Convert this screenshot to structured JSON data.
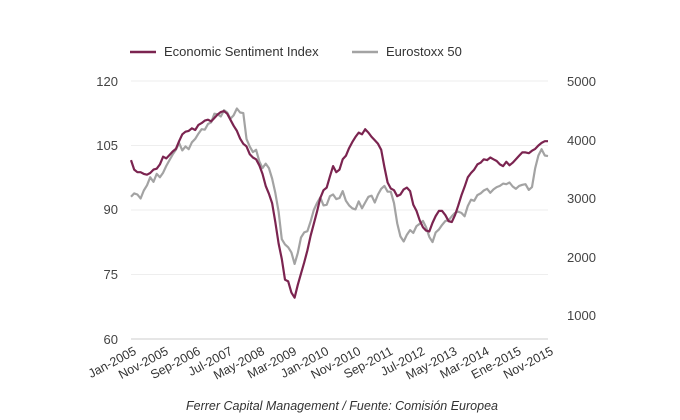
{
  "chart_data": {
    "type": "line",
    "grid": "horizontal",
    "legend_position": "top-left",
    "source": "Ferrer Capital Management / Fuente: Comisión Europea",
    "x_tick_labels": [
      "Jan-2005",
      "Nov-2005",
      "Sep-2006",
      "Jul-2007",
      "May-2008",
      "Mar-2009",
      "Jan-2010",
      "Nov-2010",
      "Sep-2011",
      "Jul-2012",
      "May-2013",
      "Mar-2014",
      "Ene-2015",
      "Nov-2015"
    ],
    "y_left": {
      "ylim": [
        60,
        120
      ],
      "ticks": [
        "120",
        "105",
        "90",
        "75",
        "60"
      ]
    },
    "y_right": {
      "ylim": [
        500,
        5000
      ],
      "ticks": [
        "5000",
        "4000",
        "3000",
        "2000",
        "1000"
      ]
    },
    "series": [
      {
        "name": "Economic Sentiment Index",
        "axis": "left",
        "color": "#7b2450",
        "start": "2005-01",
        "values": [
          101.6,
          99.4,
          98.8,
          98.8,
          98.4,
          98.2,
          98.6,
          99.4,
          99.6,
          100.6,
          102.4,
          102.0,
          102.8,
          103.6,
          104.2,
          106.0,
          107.6,
          108.2,
          108.4,
          109.0,
          108.6,
          109.8,
          110.2,
          110.8,
          111.0,
          110.6,
          111.4,
          112.2,
          112.8,
          113.0,
          112.4,
          111.0,
          109.6,
          108.4,
          106.6,
          105.4,
          104.8,
          103.0,
          102.2,
          101.8,
          100.4,
          98.4,
          95.6,
          93.8,
          91.6,
          87.2,
          82.2,
          78.6,
          73.8,
          73.4,
          70.8,
          69.6,
          72.6,
          75.2,
          77.8,
          80.6,
          84.0,
          86.8,
          89.6,
          92.8,
          94.6,
          95.2,
          97.8,
          100.2,
          98.8,
          99.4,
          101.8,
          102.6,
          104.4,
          105.8,
          107.0,
          108.0,
          107.6,
          108.8,
          108.0,
          107.0,
          106.2,
          105.4,
          104.0,
          100.0,
          96.4,
          95.0,
          94.6,
          93.2,
          93.6,
          94.8,
          95.2,
          94.4,
          91.2,
          89.8,
          87.6,
          86.0,
          85.2,
          85.0,
          87.0,
          88.6,
          89.8,
          89.8,
          88.8,
          87.4,
          87.2,
          88.8,
          91.0,
          93.4,
          95.4,
          97.6,
          98.6,
          99.4,
          100.6,
          101.0,
          101.8,
          101.6,
          102.2,
          101.8,
          101.4,
          100.6,
          100.2,
          101.2,
          100.4,
          101.0,
          101.8,
          102.6,
          103.4,
          103.4,
          103.2,
          103.8,
          104.2,
          105.0,
          105.6,
          106.0,
          106.0
        ],
        "note": "Monthly values Jan-2005 to Nov-2015 (131 months), read off the chart"
      },
      {
        "name": "Eurostoxx 50",
        "axis": "right",
        "color": "#a3a3a3",
        "start": "2005-01",
        "values": [
          2980,
          3040,
          3020,
          2950,
          3090,
          3180,
          3320,
          3240,
          3380,
          3320,
          3400,
          3520,
          3620,
          3720,
          3800,
          3920,
          3790,
          3860,
          3810,
          3930,
          3990,
          4080,
          4160,
          4150,
          4250,
          4280,
          4430,
          4420,
          4380,
          4490,
          4450,
          4340,
          4400,
          4520,
          4450,
          4440,
          3990,
          3860,
          3760,
          3800,
          3600,
          3480,
          3560,
          3480,
          3300,
          3050,
          2720,
          2240,
          2150,
          2100,
          2010,
          1810,
          2000,
          2270,
          2360,
          2380,
          2550,
          2750,
          2870,
          2970,
          2830,
          2840,
          2990,
          3020,
          2940,
          2960,
          3080,
          2910,
          2830,
          2780,
          2760,
          2900,
          2780,
          2880,
          2980,
          3000,
          2880,
          3020,
          3120,
          3170,
          3070,
          3070,
          2870,
          2520,
          2290,
          2200,
          2320,
          2400,
          2350,
          2470,
          2510,
          2560,
          2450,
          2280,
          2190,
          2360,
          2410,
          2490,
          2560,
          2570,
          2640,
          2700,
          2720,
          2700,
          2640,
          2820,
          2930,
          2910,
          3010,
          3040,
          3090,
          3120,
          3050,
          3110,
          3150,
          3170,
          3210,
          3200,
          3230,
          3160,
          3120,
          3170,
          3190,
          3200,
          3100,
          3150,
          3480,
          3700,
          3810,
          3700,
          3690
        ]
      }
    ]
  },
  "legend": {
    "items": [
      {
        "label": "Economic Sentiment Index",
        "color": "#7b2450"
      },
      {
        "label": "Eurostoxx 50",
        "color": "#a3a3a3"
      }
    ]
  }
}
